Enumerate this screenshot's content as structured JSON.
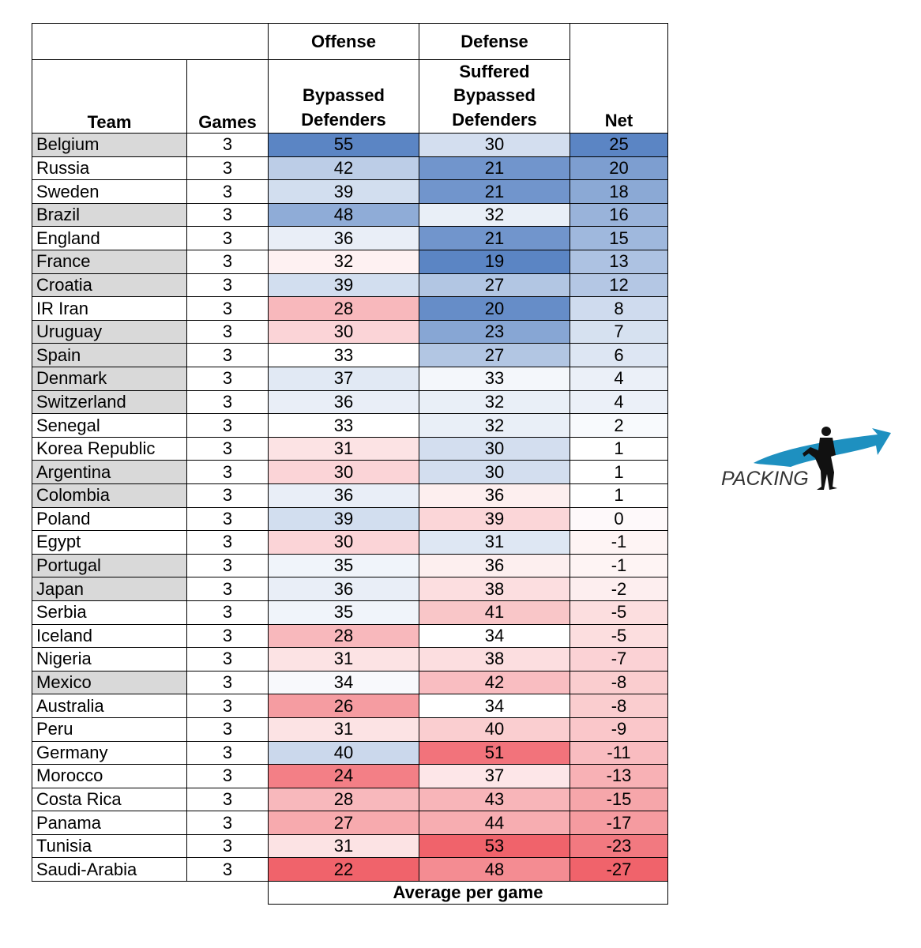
{
  "chart_data": {
    "type": "table",
    "group_headers": {
      "offense": "Offense",
      "defense": "Defense"
    },
    "columns": {
      "team": "Team",
      "games": "Games",
      "offense": [
        "Bypassed",
        "Defenders"
      ],
      "defense": [
        "Suffered",
        "Bypassed",
        "Defenders"
      ],
      "net": "Net"
    },
    "caption": "Average per game",
    "rows": [
      {
        "team": "Belgium",
        "games": 3,
        "offense": 55,
        "defense": 30,
        "net": 25,
        "shaded": true
      },
      {
        "team": "Russia",
        "games": 3,
        "offense": 42,
        "defense": 21,
        "net": 20,
        "shaded": false
      },
      {
        "team": "Sweden",
        "games": 3,
        "offense": 39,
        "defense": 21,
        "net": 18,
        "shaded": false
      },
      {
        "team": "Brazil",
        "games": 3,
        "offense": 48,
        "defense": 32,
        "net": 16,
        "shaded": true
      },
      {
        "team": "England",
        "games": 3,
        "offense": 36,
        "defense": 21,
        "net": 15,
        "shaded": false
      },
      {
        "team": "France",
        "games": 3,
        "offense": 32,
        "defense": 19,
        "net": 13,
        "shaded": true
      },
      {
        "team": "Croatia",
        "games": 3,
        "offense": 39,
        "defense": 27,
        "net": 12,
        "shaded": true
      },
      {
        "team": "IR Iran",
        "games": 3,
        "offense": 28,
        "defense": 20,
        "net": 8,
        "shaded": false
      },
      {
        "team": "Uruguay",
        "games": 3,
        "offense": 30,
        "defense": 23,
        "net": 7,
        "shaded": true
      },
      {
        "team": "Spain",
        "games": 3,
        "offense": 33,
        "defense": 27,
        "net": 6,
        "shaded": true
      },
      {
        "team": "Denmark",
        "games": 3,
        "offense": 37,
        "defense": 33,
        "net": 4,
        "shaded": true
      },
      {
        "team": "Switzerland",
        "games": 3,
        "offense": 36,
        "defense": 32,
        "net": 4,
        "shaded": true
      },
      {
        "team": "Senegal",
        "games": 3,
        "offense": 33,
        "defense": 32,
        "net": 2,
        "shaded": false
      },
      {
        "team": "Korea Republic",
        "games": 3,
        "offense": 31,
        "defense": 30,
        "net": 1,
        "shaded": false
      },
      {
        "team": "Argentina",
        "games": 3,
        "offense": 30,
        "defense": 30,
        "net": 1,
        "shaded": true
      },
      {
        "team": "Colombia",
        "games": 3,
        "offense": 36,
        "defense": 36,
        "net": 1,
        "shaded": true
      },
      {
        "team": "Poland",
        "games": 3,
        "offense": 39,
        "defense": 39,
        "net": 0,
        "shaded": false
      },
      {
        "team": "Egypt",
        "games": 3,
        "offense": 30,
        "defense": 31,
        "net": -1,
        "shaded": false
      },
      {
        "team": "Portugal",
        "games": 3,
        "offense": 35,
        "defense": 36,
        "net": -1,
        "shaded": true
      },
      {
        "team": "Japan",
        "games": 3,
        "offense": 36,
        "defense": 38,
        "net": -2,
        "shaded": true
      },
      {
        "team": "Serbia",
        "games": 3,
        "offense": 35,
        "defense": 41,
        "net": -5,
        "shaded": false
      },
      {
        "team": "Iceland",
        "games": 3,
        "offense": 28,
        "defense": 34,
        "net": -5,
        "shaded": false
      },
      {
        "team": "Nigeria",
        "games": 3,
        "offense": 31,
        "defense": 38,
        "net": -7,
        "shaded": false
      },
      {
        "team": "Mexico",
        "games": 3,
        "offense": 34,
        "defense": 42,
        "net": -8,
        "shaded": true
      },
      {
        "team": "Australia",
        "games": 3,
        "offense": 26,
        "defense": 34,
        "net": -8,
        "shaded": false
      },
      {
        "team": "Peru",
        "games": 3,
        "offense": 31,
        "defense": 40,
        "net": -9,
        "shaded": false
      },
      {
        "team": "Germany",
        "games": 3,
        "offense": 40,
        "defense": 51,
        "net": -11,
        "shaded": false
      },
      {
        "team": "Morocco",
        "games": 3,
        "offense": 24,
        "defense": 37,
        "net": -13,
        "shaded": false
      },
      {
        "team": "Costa Rica",
        "games": 3,
        "offense": 28,
        "defense": 43,
        "net": -15,
        "shaded": false
      },
      {
        "team": "Panama",
        "games": 3,
        "offense": 27,
        "defense": 44,
        "net": -17,
        "shaded": false
      },
      {
        "team": "Tunisia",
        "games": 3,
        "offense": 31,
        "defense": 53,
        "net": -23,
        "shaded": false
      },
      {
        "team": "Saudi-Arabia",
        "games": 3,
        "offense": 22,
        "defense": 48,
        "net": -27,
        "shaded": false
      }
    ],
    "color_scale": {
      "high": "#5b85c4",
      "mid": "#ffffff",
      "low": "#f0636b"
    }
  },
  "logo": {
    "text": "PACKING",
    "arrow_color": "#1e90c0",
    "figure_color": "#111111"
  }
}
